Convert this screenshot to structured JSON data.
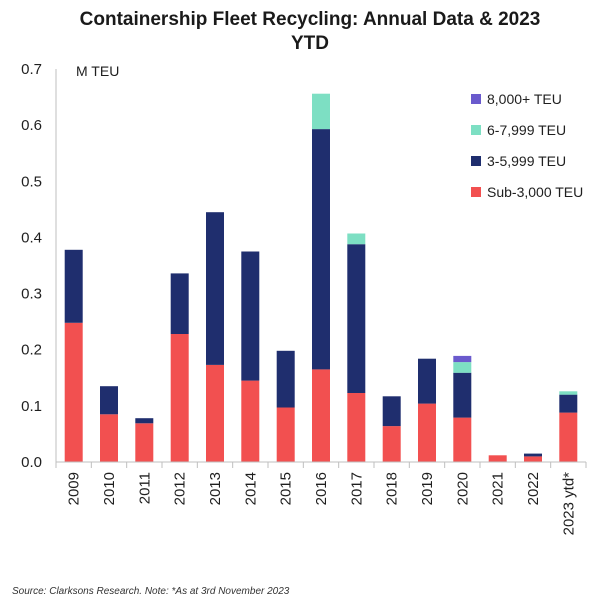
{
  "title": "Containership Fleet Recycling: Annual Data & 2023 YTD",
  "source_note": "Source: Clarksons Research. Note: *As at 3rd November 2023",
  "chart_data": {
    "type": "bar",
    "stacked": true,
    "title": "Containership Fleet Recycling: Annual Data & 2023 YTD",
    "unit_label": "M TEU",
    "xlabel": "",
    "ylabel": "",
    "ylim": [
      0,
      0.7
    ],
    "yticks": [
      "0.0",
      "0.1",
      "0.2",
      "0.3",
      "0.4",
      "0.5",
      "0.6",
      "0.7"
    ],
    "grid": false,
    "legend_position": "top-right",
    "categories": [
      "2009",
      "2010",
      "2011",
      "2012",
      "2013",
      "2014",
      "2015",
      "2016",
      "2017",
      "2018",
      "2019",
      "2020",
      "2021",
      "2022",
      "2023 ytd*"
    ],
    "series": [
      {
        "name": "Sub-3,000 TEU",
        "color": "#f25050",
        "values": [
          0.248,
          0.085,
          0.069,
          0.228,
          0.173,
          0.145,
          0.097,
          0.165,
          0.123,
          0.064,
          0.104,
          0.079,
          0.012,
          0.01,
          0.088
        ]
      },
      {
        "name": "3-5,999 TEU",
        "color": "#1f2e6e",
        "values": [
          0.13,
          0.05,
          0.009,
          0.108,
          0.272,
          0.23,
          0.101,
          0.428,
          0.265,
          0.053,
          0.08,
          0.08,
          0.0,
          0.005,
          0.032
        ]
      },
      {
        "name": "6-7,999 TEU",
        "color": "#7ddfc3",
        "values": [
          0.0,
          0.0,
          0.0,
          0.0,
          0.0,
          0.0,
          0.0,
          0.063,
          0.019,
          0.0,
          0.0,
          0.019,
          0.0,
          0.0,
          0.006
        ]
      },
      {
        "name": "8,000+ TEU",
        "color": "#6a5acd",
        "values": [
          0.0,
          0.0,
          0.0,
          0.0,
          0.0,
          0.0,
          0.0,
          0.0,
          0.0,
          0.0,
          0.0,
          0.011,
          0.0,
          0.0,
          0.0
        ]
      }
    ],
    "legend_order": [
      "8,000+ TEU",
      "6-7,999 TEU",
      "3-5,999 TEU",
      "Sub-3,000 TEU"
    ]
  }
}
